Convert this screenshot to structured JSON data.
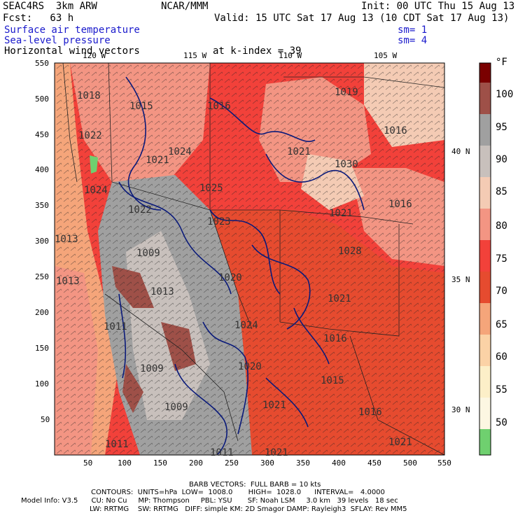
{
  "header": {
    "line1_left": "SEAC4RS  3km ARW",
    "line1_center": "NCAR/MMM",
    "line1_right": "Init: 00 UTC Thu 15 Aug 13",
    "line2_left": "Fcst:   63 h",
    "line2_right": "Valid: 15 UTC Sat 17 Aug 13 (10 CDT Sat 17 Aug 13)",
    "field1": "Surface air temperature",
    "field1_sm": "sm= 1",
    "field2": "Sea-level pressure",
    "field2_sm": "sm= 4",
    "field3": "Horizontal wind vectors",
    "kindex": "at k-index = 39"
  },
  "map": {
    "x_ticks": [
      "50",
      "100",
      "150",
      "200",
      "250",
      "300",
      "350",
      "400",
      "450",
      "500",
      "550"
    ],
    "y_ticks": [
      "550",
      "500",
      "450",
      "400",
      "350",
      "300",
      "250",
      "200",
      "150",
      "100",
      "50"
    ],
    "lon_labels": [
      "120 W",
      "115 W",
      "110 W",
      "105 W"
    ],
    "lat_labels": [
      "40 N",
      "35 N",
      "30 N"
    ],
    "pressure_labels": [
      "1018",
      "1015",
      "1022",
      "1021",
      "1024",
      "1025",
      "1022",
      "1023",
      "1013",
      "1024",
      "1021",
      "1030",
      "1021",
      "1016",
      "1016",
      "1019",
      "1016",
      "1028",
      "1009",
      "1013",
      "1020",
      "1021",
      "1011",
      "1024",
      "1016",
      "1009",
      "1020",
      "1015",
      "1009",
      "1021",
      "1016",
      "1011",
      "1011",
      "1021",
      "1021",
      "1013"
    ],
    "colors": {
      "contour": "#0a1a7a",
      "boundary": "#222222",
      "barb": "#222222"
    }
  },
  "colorbar": {
    "unit": "°F",
    "labels": [
      "100",
      "95",
      "90",
      "85",
      "80",
      "75",
      "70",
      "65",
      "60",
      "55",
      "50"
    ],
    "colors": [
      "#7a0000",
      "#9e5048",
      "#a0a0a0",
      "#c8c0bc",
      "#f4cbb4",
      "#f39583",
      "#f2413a",
      "#e64b2f",
      "#f5a57a",
      "#fbd2a6",
      "#fcefc8",
      "#6fd06f"
    ]
  },
  "footer": {
    "barb": "BARB VECTORS:  FULL BARB = 10 kts",
    "contours": "CONTOURS:  UNITS=hPa  LOW=  1008.0       HIGH=  1028.0      INTERVAL=   4.0000",
    "model1": "Model Info: V3.5      CU: No Cu     MP: Thompson     PBL: YSU       SF: Noah LSM     3.0 km   39 levels   18 sec",
    "model2": "LW: RRTMG    SW: RRTMG   DIFF: simple KM: 2D Smagor DAMP: Rayleigh3  SFLAY: Rev MM5"
  }
}
